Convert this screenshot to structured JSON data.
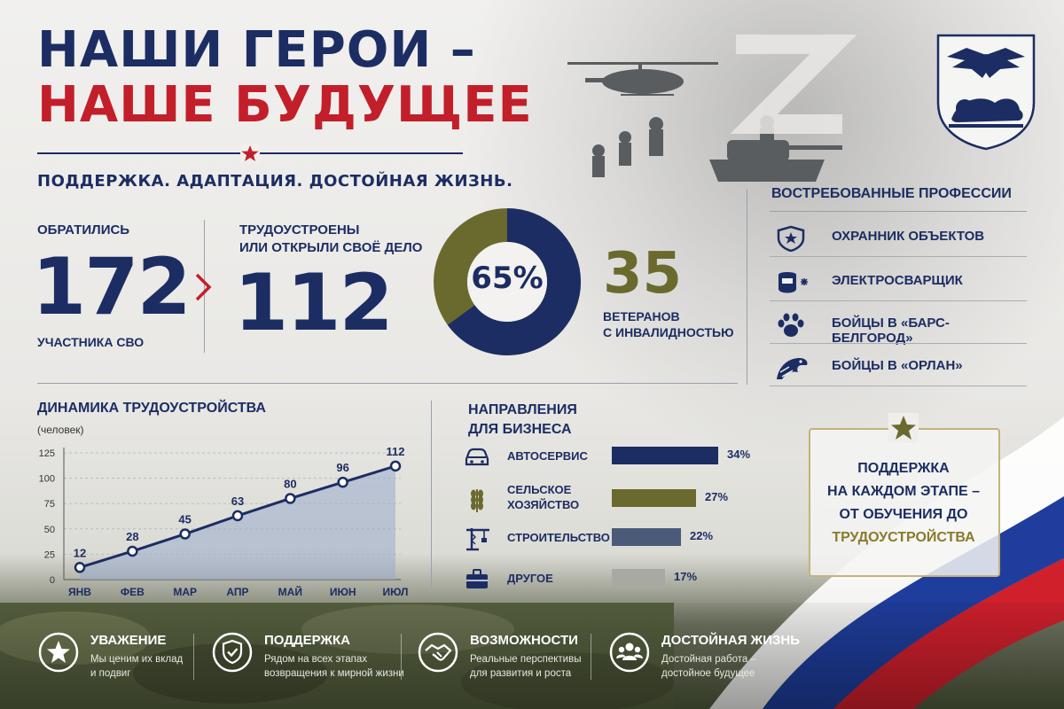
{
  "header": {
    "title_line1": "НАШИ ГЕРОИ –",
    "title_line2": "НАШЕ БУДУЩЕЕ",
    "subtitle": "ПОДДЕРЖКА. АДАПТАЦИЯ. ДОСТОЙНАЯ ЖИЗНЬ."
  },
  "colors": {
    "navy": "#1c2d63",
    "red": "#c21f2a",
    "olive": "#6b6a2e",
    "slate": "#4a5a78",
    "gray": "#a9a9a4"
  },
  "stats": {
    "applied_label": "ОБРАТИЛИСЬ",
    "applied_value": "172",
    "applied_caption": "УЧАСТНИКА СВО",
    "employed_label_1": "ТРУДОУСТРОЕНЫ",
    "employed_label_2": "ИЛИ ОТКРЫЛИ СВОЁ ДЕЛО",
    "employed_value": "112",
    "donut_percent_label": "65%",
    "donut_fraction": 0.65,
    "disabled_value": "35",
    "disabled_caption_1": "ВЕТЕРАНОВ",
    "disabled_caption_2": "С ИНВАЛИДНОСТЬЮ"
  },
  "professions": {
    "title": "ВОСТРЕБОВАННЫЕ ПРОФЕССИИ",
    "items": [
      {
        "label": "ОХРАННИК ОБЪЕКТОВ",
        "icon": "shield-star-icon"
      },
      {
        "label": "ЭЛЕКТРОСВАРЩИК",
        "icon": "welder-mask-icon"
      },
      {
        "label": "БОЙЦЫ В «БАРС-БЕЛГОРОД»",
        "icon": "paw-icon"
      },
      {
        "label": "БОЙЦЫ В «ОРЛАН»",
        "icon": "eagle-icon"
      }
    ]
  },
  "chart_data": {
    "type": "area",
    "title": "ДИНАМИКА ТРУДОУСТРОЙСТВА",
    "ylabel": "(человек)",
    "categories": [
      "ЯНВ",
      "ФЕВ",
      "МАР",
      "АПР",
      "МАЙ",
      "ИЮН",
      "ИЮЛ"
    ],
    "values": [
      12,
      28,
      45,
      63,
      80,
      96,
      112
    ],
    "yticks": [
      0,
      25,
      50,
      75,
      100,
      125
    ],
    "ylim": [
      0,
      125
    ],
    "grid": true
  },
  "business": {
    "title_1": "НАПРАВЛЕНИЯ",
    "title_2": "ДЛЯ БИЗНЕСА",
    "items": [
      {
        "name_1": "АВТОСЕРВИС",
        "name_2": "",
        "value": 34,
        "label": "34%",
        "color": "#1c2d63",
        "icon": "car-icon"
      },
      {
        "name_1": "СЕЛЬСКОЕ",
        "name_2": "ХОЗЯЙСТВО",
        "value": 27,
        "label": "27%",
        "color": "#6b6a2e",
        "icon": "wheat-icon"
      },
      {
        "name_1": "СТРОИТЕЛЬСТВО",
        "name_2": "",
        "value": 22,
        "label": "22%",
        "color": "#4a5a78",
        "icon": "crane-icon"
      },
      {
        "name_1": "ДРУГОЕ",
        "name_2": "",
        "value": 17,
        "label": "17%",
        "color": "#a9a9a4",
        "icon": "briefcase-icon"
      }
    ]
  },
  "support_box": {
    "line1": "ПОДДЕРЖКА",
    "line2": "НА КАЖДОМ ЭТАПЕ –",
    "line3": "ОТ ОБУЧЕНИЯ ДО",
    "line4": "ТРУДОУСТРОЙСТВА"
  },
  "footer": [
    {
      "title": "УВАЖЕНИЕ",
      "sub1": "Мы ценим их вклад",
      "sub2": "и подвиг",
      "icon": "star-icon"
    },
    {
      "title": "ПОДДЕРЖКА",
      "sub1": "Рядом на всех этапах",
      "sub2": "возвращения к мирной жизни",
      "icon": "shield-check-icon"
    },
    {
      "title": "ВОЗМОЖНОСТИ",
      "sub1": "Реальные перспективы",
      "sub2": "для развития и роста",
      "icon": "handshake-icon"
    },
    {
      "title": "ДОСТОЙНАЯ ЖИЗНЬ",
      "sub1": "Достойная работа –",
      "sub2": "достойное будущее",
      "icon": "people-icon"
    }
  ]
}
